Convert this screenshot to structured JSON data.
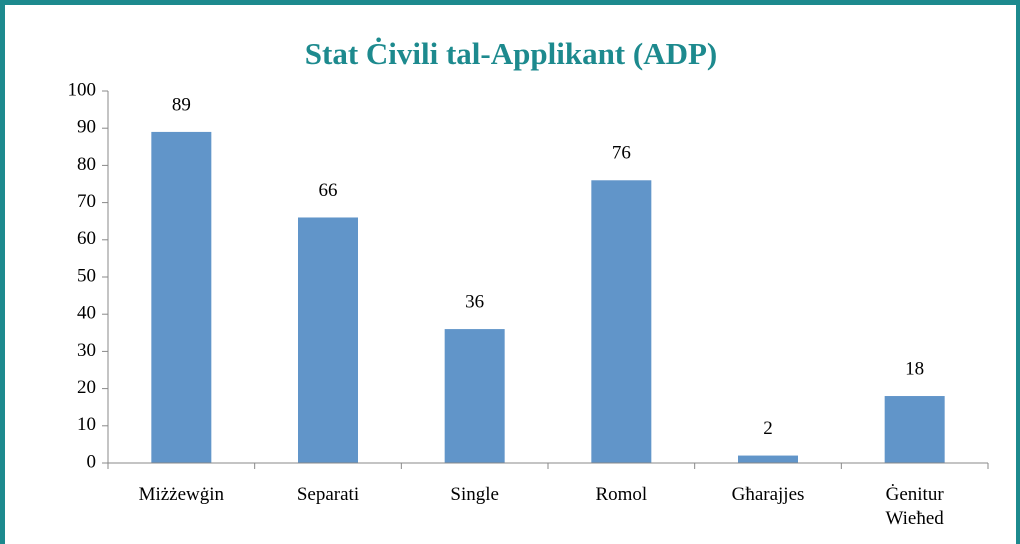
{
  "chart_data": {
    "type": "bar",
    "title": "Stat Ċivili tal-Applikant (ADP)",
    "categories": [
      "Miżżewġin",
      "Separati",
      "Single",
      "Romol",
      "Għarajjes",
      "Ġenitur Wieħed"
    ],
    "values": [
      89,
      66,
      36,
      76,
      2,
      18
    ],
    "color": "#6195c9",
    "ylim": [
      0,
      100
    ],
    "yticks": [
      0,
      10,
      20,
      30,
      40,
      50,
      60,
      70,
      80,
      90,
      100
    ],
    "grid": false
  }
}
